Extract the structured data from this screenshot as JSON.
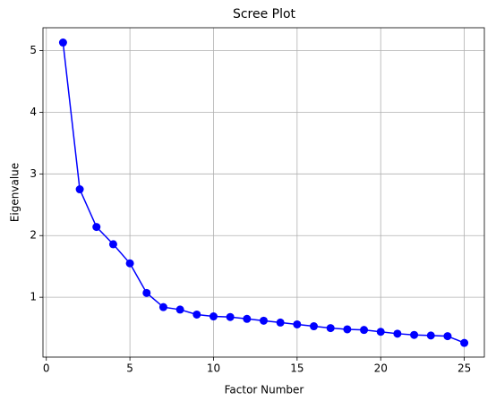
{
  "chart_data": {
    "type": "line",
    "title": "Scree Plot",
    "x_label": "Factor Number",
    "y_label": "Eigenvalue",
    "x": [
      1,
      2,
      3,
      4,
      5,
      6,
      7,
      8,
      9,
      10,
      11,
      12,
      13,
      14,
      15,
      16,
      17,
      18,
      19,
      20,
      21,
      22,
      23,
      24,
      25
    ],
    "series": [
      {
        "color": "#0000ff",
        "values": [
          5.13,
          2.75,
          2.14,
          1.86,
          1.55,
          1.07,
          0.84,
          0.8,
          0.72,
          0.69,
          0.68,
          0.65,
          0.62,
          0.59,
          0.56,
          0.53,
          0.5,
          0.48,
          0.47,
          0.44,
          0.41,
          0.39,
          0.38,
          0.37,
          0.26
        ]
      }
    ],
    "xlim": [
      -0.2,
      26.2
    ],
    "ylim": [
      0.03,
      5.37
    ],
    "xticks": [
      0,
      5,
      10,
      15,
      20,
      25
    ],
    "yticks": [
      1,
      2,
      3,
      4,
      5
    ],
    "grid": true
  }
}
